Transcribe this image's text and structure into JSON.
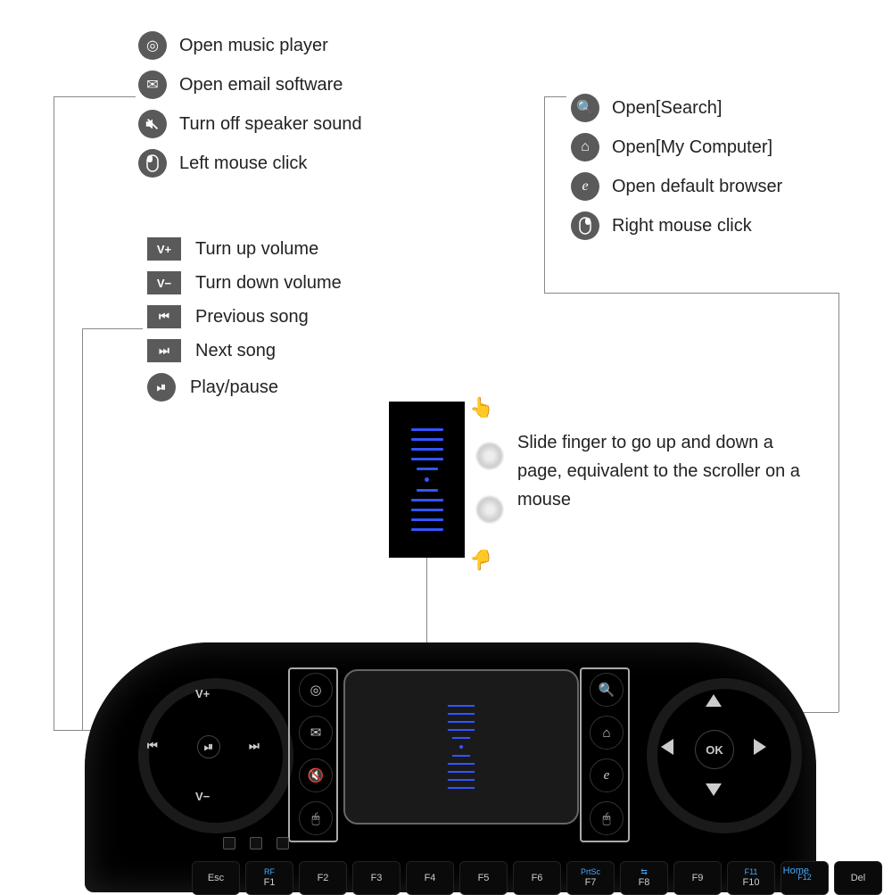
{
  "type": "infographic",
  "background_color": "#ffffff",
  "text_color": "#222222",
  "font_family": "Arial",
  "label_fontsize": 20,
  "icon_bg_color": "#5a5a5a",
  "leader_line_color": "#888888",
  "device": {
    "body_color": "#000000",
    "touchpad_color": "#1a1a1a",
    "touchpad_border": "#666666",
    "scroll_mark_color": "#3355ff",
    "key_text_color": "#cccccc",
    "blue_text_color": "#44aaff"
  },
  "group1": {
    "items": [
      {
        "icon": "music",
        "label": "Open music player"
      },
      {
        "icon": "email",
        "label": "Open email software"
      },
      {
        "icon": "mute",
        "label": "Turn off speaker sound"
      },
      {
        "icon": "mouseL",
        "label": "Left mouse click"
      }
    ]
  },
  "group2": {
    "items": [
      {
        "key": "V+",
        "label": "Turn up volume"
      },
      {
        "key": "V−",
        "label": "Turn down volume"
      },
      {
        "key": "⏮",
        "label": "Previous song"
      },
      {
        "key": "⏭",
        "label": "Next song"
      },
      {
        "key": "⏯",
        "label": "Play/pause"
      }
    ]
  },
  "group3": {
    "items": [
      {
        "icon": "search",
        "label": "Open[Search]"
      },
      {
        "icon": "home",
        "label": "Open[My Computer]"
      },
      {
        "icon": "browser",
        "label": "Open default browser"
      },
      {
        "icon": "mouseR",
        "label": "Right mouse click"
      }
    ]
  },
  "scroll_text": "Slide finger to go up and down a page,  equivalent to the scroller on a mouse",
  "media_wheel": {
    "up": "V+",
    "down": "V−",
    "left": "⏮",
    "right": "⏭",
    "center": "⏯"
  },
  "dpad": {
    "ok": "OK"
  },
  "fkeys": [
    {
      "main": "Esc",
      "blue": ""
    },
    {
      "main": "F1",
      "blue": "RF"
    },
    {
      "main": "F2",
      "blue": ""
    },
    {
      "main": "F3",
      "blue": ""
    },
    {
      "main": "F4",
      "blue": ""
    },
    {
      "main": "F5",
      "blue": ""
    },
    {
      "main": "F6",
      "blue": ""
    },
    {
      "main": "F7",
      "blue": "PrtSc"
    },
    {
      "main": "F8",
      "blue": "⇆"
    },
    {
      "main": "F9",
      "blue": ""
    },
    {
      "main": "F10",
      "blue": "F11"
    },
    {
      "main": "",
      "blue": "F12"
    },
    {
      "main": "Del",
      "blue": ""
    }
  ],
  "home_key": "Home"
}
